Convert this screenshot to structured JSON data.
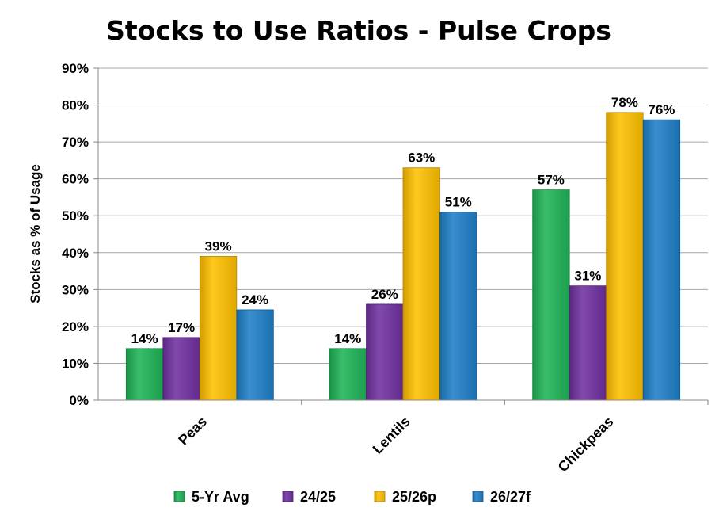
{
  "chart_data": {
    "type": "bar",
    "title": "Stocks to Use Ratios - Pulse Crops",
    "ylabel": "Stocks as % of Usage",
    "xlabel": "",
    "categories": [
      "Peas",
      "Lentils",
      "Chickpeas"
    ],
    "ylim": [
      0,
      90
    ],
    "yticks": [
      0,
      10,
      20,
      30,
      40,
      50,
      60,
      70,
      80,
      90
    ],
    "ytick_labels": [
      "0%",
      "10%",
      "20%",
      "30%",
      "40%",
      "50%",
      "60%",
      "70%",
      "80%",
      "90%"
    ],
    "grid": true,
    "legend_position": "bottom",
    "series": [
      {
        "name": "5-Yr Avg",
        "color": "#1FB457",
        "values": [
          14,
          14,
          57
        ],
        "labels": [
          "14%",
          "14%",
          "57%"
        ]
      },
      {
        "name": "24/25",
        "color": "#7030A0",
        "values": [
          17,
          26,
          31
        ],
        "labels": [
          "17%",
          "26%",
          "31%"
        ]
      },
      {
        "name": "25/26p",
        "color": "#FFC000",
        "values": [
          39,
          63,
          78
        ],
        "labels": [
          "39%",
          "63%",
          "78%"
        ]
      },
      {
        "name": "26/27f",
        "color": "#1F7FC8",
        "values": [
          24.5,
          51,
          76
        ],
        "labels": [
          "24%",
          "51%",
          "76%"
        ]
      }
    ]
  }
}
